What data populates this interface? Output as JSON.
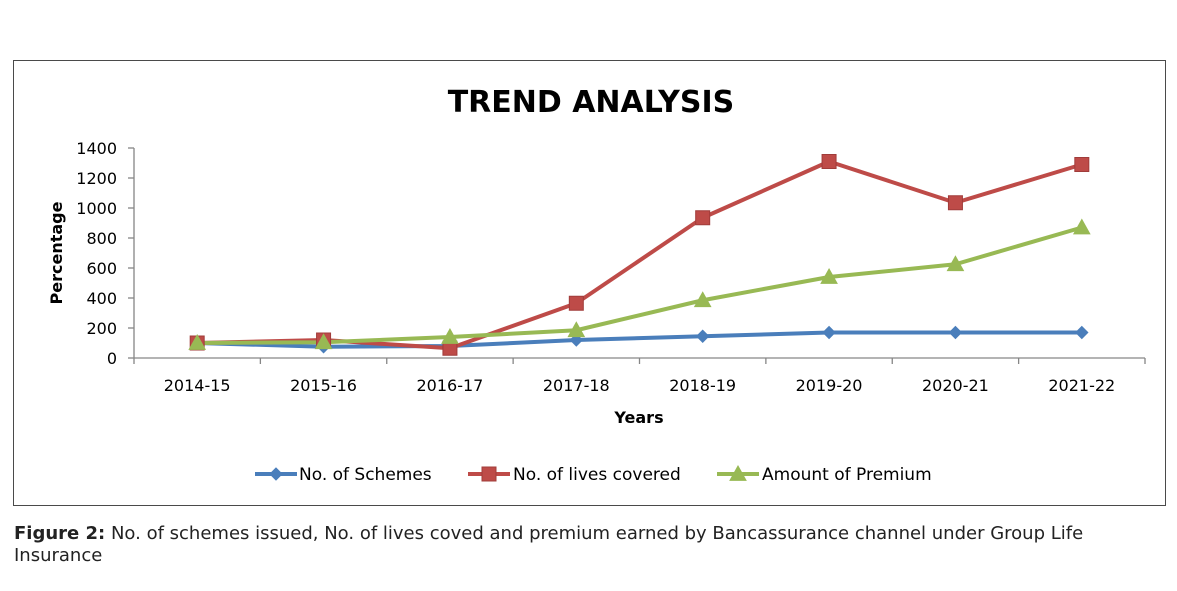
{
  "chart_data": {
    "type": "line",
    "title": "TREND ANALYSIS",
    "xlabel": "Years",
    "ylabel": "Percentage",
    "categories": [
      "2014-15",
      "2015-16",
      "2016-17",
      "2017-18",
      "2018-19",
      "2019-20",
      "2020-21",
      "2021-22"
    ],
    "ylim": [
      0,
      1400
    ],
    "yticks": [
      "0",
      "200",
      "400",
      "600",
      "800",
      "1000",
      "1200",
      "1400"
    ],
    "legend_position": "bottom",
    "series": [
      {
        "name": "No. of Schemes",
        "color": "#4a7ebb",
        "marker": "diamond",
        "values": [
          100,
          75,
          80,
          120,
          145,
          170,
          170,
          170
        ]
      },
      {
        "name": "No. of lives covered",
        "color": "#be4b48",
        "marker": "square",
        "values": [
          100,
          120,
          65,
          365,
          935,
          1310,
          1035,
          1290
        ]
      },
      {
        "name": "Amount of Premium",
        "color": "#98b954",
        "marker": "triangle",
        "values": [
          100,
          105,
          140,
          185,
          385,
          540,
          625,
          870
        ]
      }
    ]
  },
  "caption": {
    "label": "Figure 2:",
    "text": " No. of schemes issued, No. of lives coved and premium earned by Bancassurance channel under Group Life Insurance"
  }
}
